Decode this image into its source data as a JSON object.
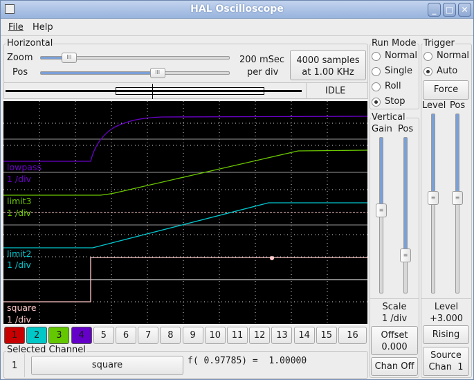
{
  "window": {
    "title": "HAL Oscilloscope",
    "buttons": [
      "minimize",
      "maximize",
      "close"
    ]
  },
  "menu": [
    "File",
    "Help"
  ],
  "horizontal": {
    "label": "Horizontal",
    "zoom_label": "Zoom",
    "pos_label": "Pos",
    "zoom_value": 0.15,
    "pos_value": 0.62,
    "scale_line1": "200 mSec",
    "scale_line2": "per div",
    "samples_line1": "4000 samples",
    "samples_line2": "at 1.00 KHz",
    "status": "IDLE"
  },
  "run_mode": {
    "label": "Run Mode",
    "options": [
      "Normal",
      "Single",
      "Roll",
      "Stop"
    ],
    "selected": "Stop"
  },
  "trigger": {
    "label": "Trigger",
    "options": [
      "Normal",
      "Auto"
    ],
    "selected": "Auto",
    "force": "Force",
    "level_label": "Level",
    "pos_label": "Pos",
    "level_slider": 0.47,
    "pos_slider": 0.47,
    "level_caption": "Level",
    "level_value": "+3.000",
    "edge": "Rising",
    "source_line1": "Source",
    "source_line2": "Chan  1"
  },
  "vertical": {
    "label": "Vertical",
    "gain_label": "Gain",
    "pos_label": "Pos",
    "gain_slider": 0.47,
    "pos_slider": 0.76,
    "scale_caption": "Scale",
    "scale_value": "1 /div",
    "offset_line1": "Offset",
    "offset_line2": "0.000",
    "chan_off": "Chan Off"
  },
  "scope": {
    "channels": [
      {
        "name": "lowpass",
        "scale": "1 /div",
        "color": "#6a00c8"
      },
      {
        "name": "limit3",
        "scale": "1 /div",
        "color": "#6cc800"
      },
      {
        "name": "limit2",
        "scale": "1 /div",
        "color": "#00c8d0"
      },
      {
        "name": "square",
        "scale": "1 /div",
        "color": "#ffc8c8"
      }
    ]
  },
  "channel_buttons": [
    {
      "label": "1",
      "color": "#c80000"
    },
    {
      "label": "2",
      "color": "#00c8c8"
    },
    {
      "label": "3",
      "color": "#64c800"
    },
    {
      "label": "4",
      "color": "#6400c8"
    },
    {
      "label": "5"
    },
    {
      "label": "6"
    },
    {
      "label": "7"
    },
    {
      "label": "8"
    },
    {
      "label": "9"
    },
    {
      "label": "10"
    },
    {
      "label": "11"
    },
    {
      "label": "12"
    },
    {
      "label": "13"
    },
    {
      "label": "14"
    },
    {
      "label": "15"
    },
    {
      "label": "16"
    }
  ],
  "selected_channel": {
    "label": "Selected Channel",
    "number": "1",
    "name": "square",
    "readout": "f( 0.97785) =  1.00000"
  }
}
